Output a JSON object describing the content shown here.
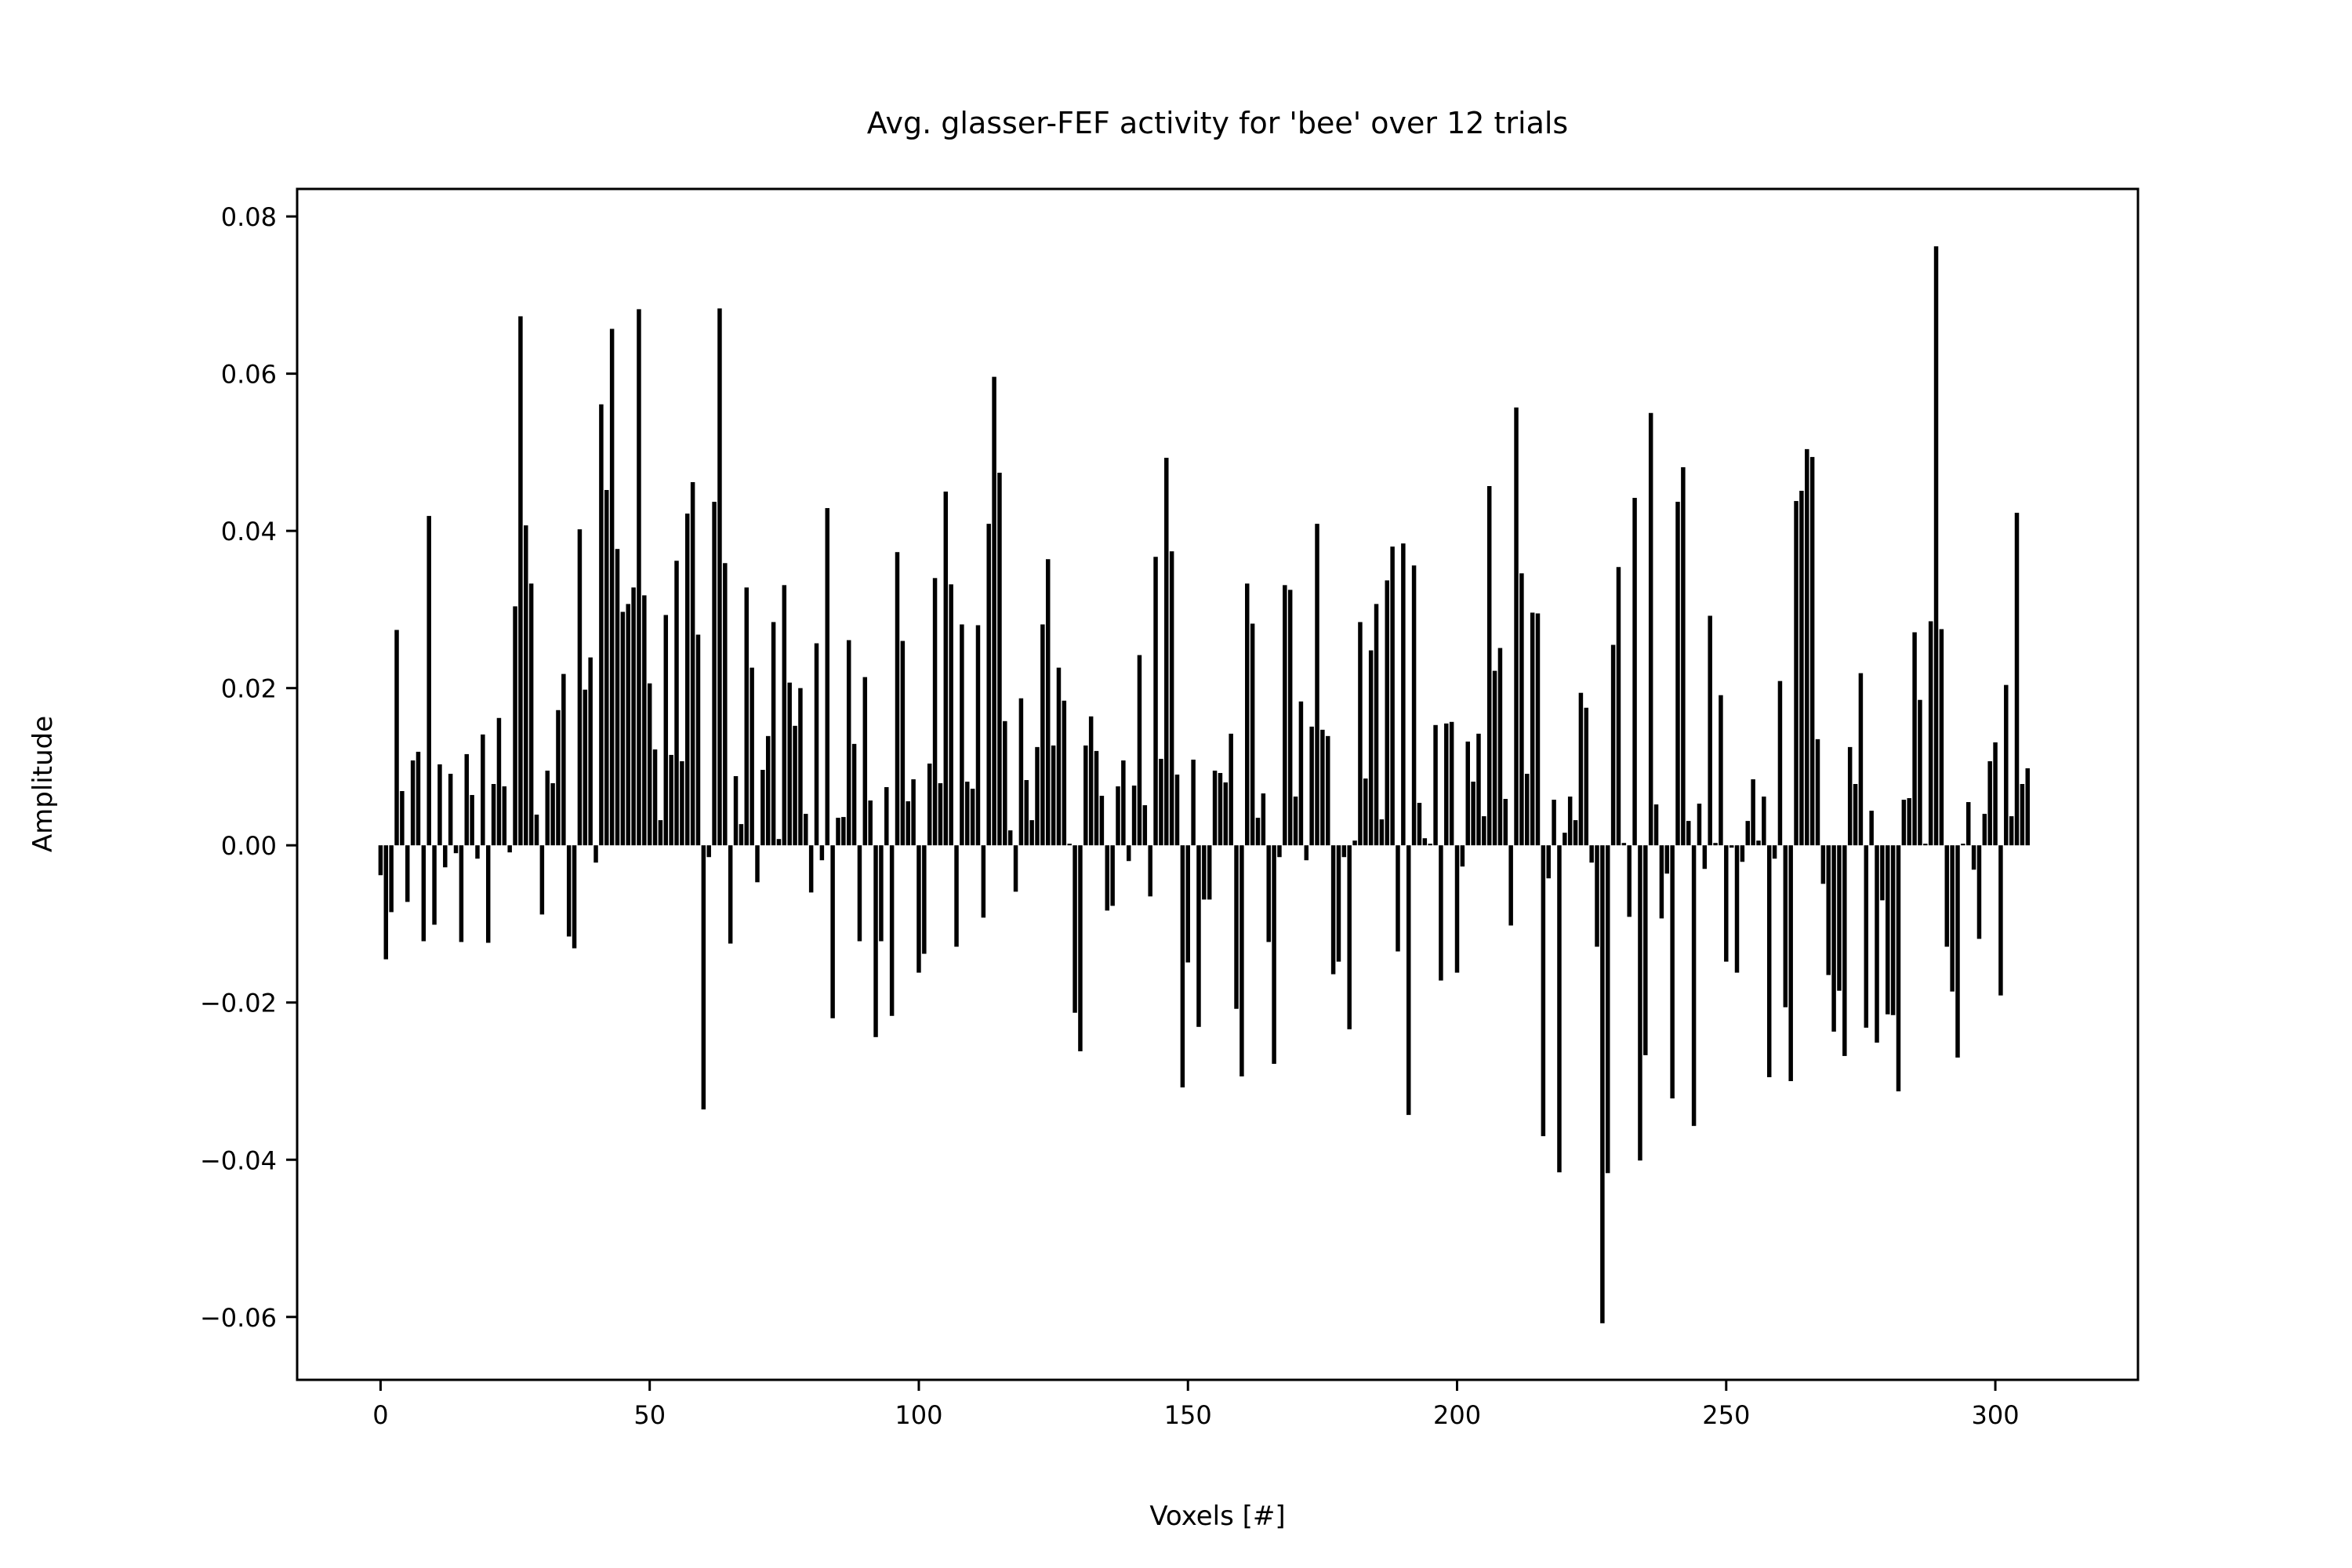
{
  "chart_data": {
    "type": "bar",
    "title": "Avg. glasser-FEF activity for 'bee' over 12 trials",
    "xlabel": "Voxels [#]",
    "ylabel": "Amplitude",
    "xlim": [
      -15.5,
      326.5
    ],
    "ylim": [
      -0.068,
      0.0835
    ],
    "xticks": [
      0,
      50,
      100,
      150,
      200,
      250,
      300
    ],
    "xtick_labels": [
      "0",
      "50",
      "100",
      "150",
      "200",
      "250",
      "300"
    ],
    "yticks": [
      -0.06,
      -0.04,
      -0.02,
      0.0,
      0.02,
      0.04,
      0.06,
      0.08
    ],
    "ytick_labels": [
      "−0.06",
      "−0.04",
      "−0.02",
      "0.00",
      "0.02",
      "0.04",
      "0.06",
      "0.08"
    ],
    "grid": false,
    "legend": "none",
    "bar_color": "#000000",
    "x_start": 0,
    "values": [
      -0.0038,
      -0.0145,
      -0.0085,
      0.0274,
      0.0069,
      -0.0072,
      0.0108,
      0.0119,
      -0.0122,
      0.0419,
      -0.0101,
      0.0103,
      -0.0028,
      0.0091,
      -0.001,
      -0.0123,
      0.0116,
      0.0064,
      -0.0017,
      0.0141,
      -0.0124,
      0.0078,
      0.0162,
      0.0075,
      -0.0009,
      0.0304,
      0.0673,
      0.0407,
      0.0333,
      0.0039,
      -0.0088,
      0.0095,
      0.0079,
      0.0172,
      0.0218,
      -0.0116,
      -0.0131,
      0.0402,
      0.0198,
      0.0239,
      -0.0022,
      0.0561,
      0.0452,
      0.0657,
      0.0377,
      0.0297,
      0.0307,
      0.0328,
      0.0682,
      0.0318,
      0.0206,
      0.0122,
      0.0032,
      0.0293,
      0.0115,
      0.0362,
      0.0107,
      0.0422,
      0.0462,
      0.0268,
      -0.0336,
      -0.0015,
      0.0437,
      0.0683,
      0.0359,
      -0.0125,
      0.0088,
      0.0027,
      0.0328,
      0.0226,
      -0.0047,
      0.0096,
      0.0139,
      0.0284,
      0.0008,
      0.0331,
      0.0207,
      0.0152,
      0.02,
      0.004,
      -0.006,
      0.0257,
      -0.0019,
      0.0429,
      -0.022,
      0.0035,
      0.0036,
      0.0261,
      0.0129,
      -0.0122,
      0.0214,
      0.0057,
      -0.0244,
      -0.0122,
      0.0074,
      -0.0217,
      0.0373,
      0.026,
      0.0056,
      0.0084,
      -0.0162,
      -0.0138,
      0.0104,
      0.034,
      0.0079,
      0.045,
      0.0332,
      -0.0129,
      0.0281,
      0.0081,
      0.0072,
      0.028,
      -0.0092,
      0.0409,
      0.0596,
      0.0474,
      0.0158,
      0.0019,
      -0.0059,
      0.0187,
      0.0083,
      0.0032,
      0.0125,
      0.0281,
      0.0364,
      0.0127,
      0.0226,
      0.0184,
      0.0002,
      -0.0213,
      -0.0262,
      0.0127,
      0.0164,
      0.012,
      0.0063,
      -0.0083,
      -0.0077,
      0.0075,
      0.0108,
      -0.002,
      0.0076,
      0.0242,
      0.0051,
      -0.0065,
      0.0367,
      0.011,
      0.0493,
      0.0374,
      0.009,
      -0.0308,
      -0.0149,
      0.0109,
      -0.0231,
      -0.0069,
      -0.0069,
      0.0095,
      0.0092,
      0.008,
      0.0142,
      -0.0208,
      -0.0294,
      0.0333,
      0.0282,
      0.0035,
      0.0066,
      -0.0123,
      -0.0278,
      -0.0015,
      0.0331,
      0.0325,
      0.0062,
      0.0183,
      -0.0019,
      0.0151,
      0.0409,
      0.0147,
      0.0139,
      -0.0164,
      -0.0148,
      -0.0015,
      -0.0234,
      0.0006,
      0.0284,
      0.0085,
      0.0248,
      0.0307,
      0.0033,
      0.0337,
      0.038,
      -0.0135,
      0.0384,
      -0.0343,
      0.0356,
      0.0054,
      0.0009,
      0.0002,
      0.0153,
      -0.0172,
      0.0155,
      0.0157,
      -0.0162,
      -0.0027,
      0.0132,
      0.0081,
      0.0142,
      0.0037,
      0.0457,
      0.0222,
      0.0251,
      0.0059,
      -0.0102,
      0.0557,
      0.0346,
      0.0091,
      0.0296,
      0.0295,
      -0.037,
      -0.0042,
      0.0058,
      -0.0416,
      0.0016,
      0.0062,
      0.0032,
      0.0194,
      0.0175,
      -0.0022,
      -0.0129,
      -0.0608,
      -0.0417,
      0.0255,
      0.0354,
      0.0003,
      -0.0091,
      0.0442,
      -0.0401,
      -0.0267,
      0.055,
      0.0052,
      -0.0093,
      -0.0036,
      -0.0322,
      0.0437,
      0.0481,
      0.0031,
      -0.0357,
      0.0053,
      -0.003,
      0.0292,
      0.0003,
      0.0191,
      -0.0148,
      -0.0003,
      -0.0162,
      -0.0021,
      0.0031,
      0.0084,
      0.0006,
      0.0062,
      -0.0295,
      -0.0017,
      0.0209,
      -0.0206,
      -0.03,
      0.0438,
      0.0451,
      0.0504,
      0.0494,
      0.0135,
      -0.0049,
      -0.0165,
      -0.0237,
      -0.0185,
      -0.0268,
      0.0125,
      0.0078,
      0.0219,
      -0.0232,
      0.0044,
      -0.0251,
      -0.007,
      -0.0215,
      -0.0216,
      -0.0313,
      0.0058,
      0.006,
      0.0271,
      0.0185,
      0.0002,
      0.0285,
      0.0762,
      0.0275,
      -0.0129,
      -0.0186,
      -0.027,
      0.0002,
      0.0055,
      -0.0031,
      -0.0119,
      0.004,
      0.0107,
      0.0131,
      -0.0191,
      0.0204,
      0.0037,
      0.0423,
      0.0078,
      0.0098
    ]
  }
}
